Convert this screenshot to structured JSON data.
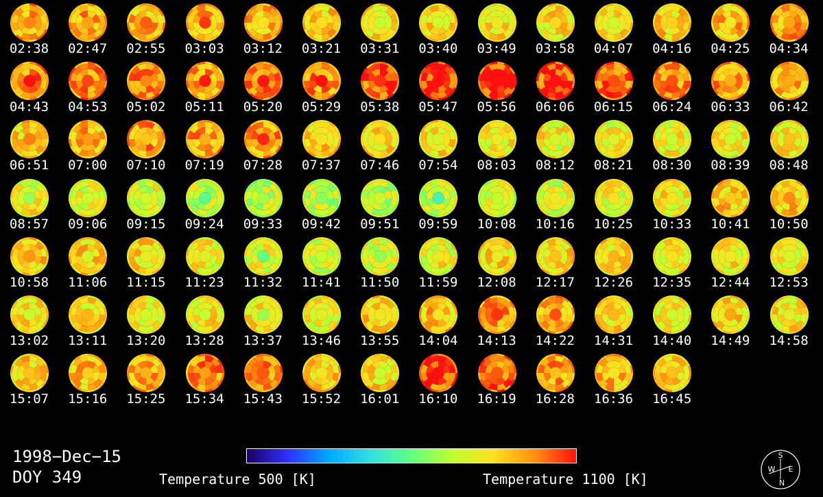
{
  "chart_data": {
    "type": "heatmap",
    "title": "",
    "date": "1998−Dec−15",
    "doy": "DOY 349",
    "times": [
      "02:38",
      "02:47",
      "02:55",
      "03:03",
      "03:12",
      "03:21",
      "03:31",
      "03:40",
      "03:49",
      "03:58",
      "04:07",
      "04:16",
      "04:25",
      "04:34",
      "04:43",
      "04:53",
      "05:02",
      "05:11",
      "05:20",
      "05:29",
      "05:38",
      "05:47",
      "05:56",
      "06:06",
      "06:15",
      "06:24",
      "06:33",
      "06:42",
      "06:51",
      "07:00",
      "07:10",
      "07:19",
      "07:28",
      "07:37",
      "07:46",
      "07:54",
      "08:03",
      "08:12",
      "08:21",
      "08:30",
      "08:39",
      "08:48",
      "08:57",
      "09:06",
      "09:15",
      "09:24",
      "09:33",
      "09:42",
      "09:51",
      "09:59",
      "10:08",
      "10:16",
      "10:25",
      "10:33",
      "10:41",
      "10:50",
      "10:58",
      "11:06",
      "11:15",
      "11:23",
      "11:32",
      "11:41",
      "11:50",
      "11:59",
      "12:08",
      "12:17",
      "12:26",
      "12:35",
      "12:44",
      "12:53",
      "13:02",
      "13:11",
      "13:20",
      "13:28",
      "13:37",
      "13:46",
      "13:55",
      "14:04",
      "14:13",
      "14:22",
      "14:31",
      "14:40",
      "14:49",
      "14:58",
      "15:07",
      "15:16",
      "15:25",
      "15:34",
      "15:43",
      "15:52",
      "16:01",
      "16:10",
      "16:19",
      "16:28",
      "16:36",
      "16:45"
    ],
    "disk_mean_temperature_K": [
      1000,
      1000,
      985,
      1000,
      985,
      965,
      950,
      945,
      945,
      945,
      950,
      965,
      985,
      1000,
      1020,
      1020,
      1030,
      1000,
      1030,
      1020,
      1045,
      1075,
      1075,
      1060,
      1045,
      1020,
      1005,
      985,
      965,
      985,
      1005,
      1005,
      1005,
      965,
      950,
      940,
      935,
      930,
      925,
      925,
      930,
      935,
      925,
      910,
      900,
      890,
      885,
      880,
      885,
      890,
      895,
      905,
      920,
      935,
      965,
      965,
      965,
      960,
      950,
      925,
      910,
      900,
      905,
      920,
      950,
      965,
      950,
      935,
      935,
      925,
      940,
      940,
      935,
      935,
      935,
      925,
      960,
      975,
      1000,
      1000,
      950,
      935,
      950,
      940,
      960,
      975,
      985,
      1020,
      1020,
      975,
      950,
      1050,
      1045,
      1000,
      975,
      960
    ],
    "colorbar": {
      "min": 500,
      "max": 1100,
      "unit": "K",
      "min_label": "Temperature 500 [K]",
      "max_label": "Temperature 1100 [K]",
      "colors": [
        "#1a0060",
        "#3030ff",
        "#00aaff",
        "#30e0e0",
        "#60ff80",
        "#c0ff30",
        "#ffe020",
        "#ff9010",
        "#ff1010"
      ]
    },
    "grid": {
      "columns": 14,
      "rows": 7
    }
  },
  "compass": {
    "n": "N",
    "s": "S",
    "e": "E",
    "w": "W"
  }
}
